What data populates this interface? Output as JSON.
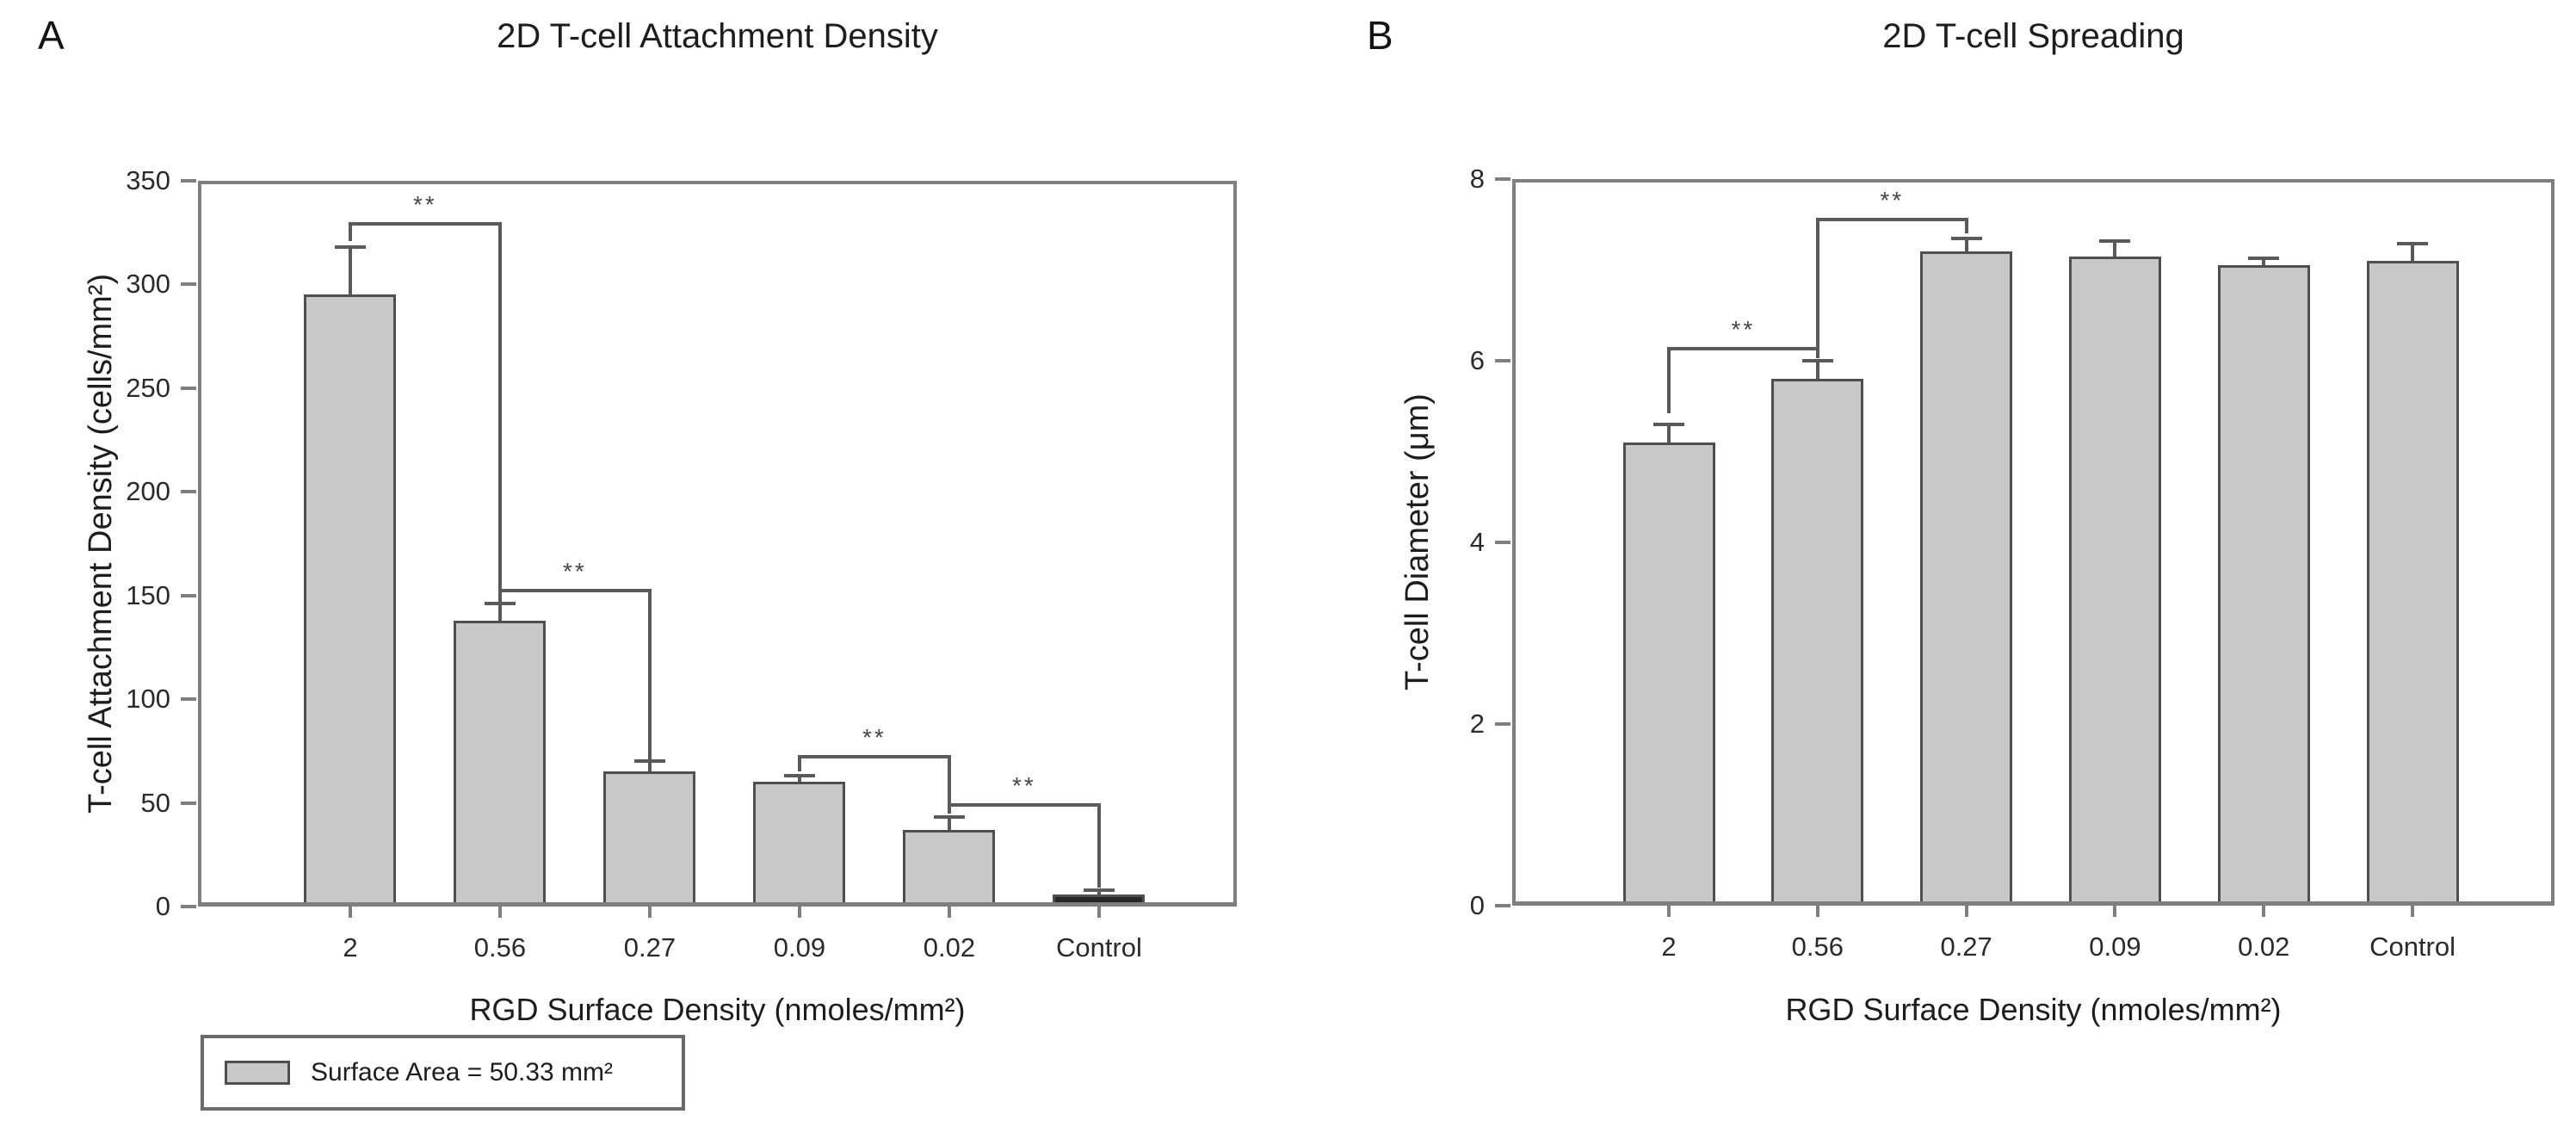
{
  "figure_background": "#ffffff",
  "chart_data": [
    {
      "type": "bar",
      "panel_label": "A",
      "title": "2D T-cell Attachment Density",
      "xlabel": "RGD Surface Density (nmoles/mm²)",
      "ylabel": "T-cell Attachment Density (cells/mm²)",
      "categories": [
        "2",
        "0.56",
        "0.27",
        "0.09",
        "0.02",
        "Control"
      ],
      "values": [
        295,
        138,
        65,
        60,
        37,
        6
      ],
      "errors_plus": [
        23,
        8,
        5,
        3,
        6,
        2
      ],
      "ylim": [
        0,
        350
      ],
      "yticks": [
        0,
        50,
        100,
        150,
        200,
        250,
        300,
        350
      ],
      "grid": false,
      "legend_position": "bottom-left",
      "bar_fill": "#c8c8c8",
      "bar_border": "#4f4f4f",
      "fill_overrides": {
        "5": "#262626"
      },
      "significance_brackets": [
        {
          "a": 0,
          "b": 1,
          "y": 330,
          "ya": 321,
          "yb": 150,
          "label": "**"
        },
        {
          "a": 1,
          "b": 2,
          "y": 153,
          "ya": 147,
          "yb": 70,
          "label": "**"
        },
        {
          "a": 3,
          "b": 4,
          "y": 73,
          "ya": 65,
          "yb": 45,
          "label": "**"
        },
        {
          "a": 4,
          "b": 5,
          "y": 50,
          "ya": 46,
          "yb": 9,
          "label": "**"
        }
      ],
      "legend_label": "Surface Area = 50.33 mm²"
    },
    {
      "type": "bar",
      "panel_label": "B",
      "title": "2D T-cell Spreading",
      "xlabel": "RGD Surface Density (nmoles/mm²)",
      "ylabel": "T-cell Diameter (μm)",
      "categories": [
        "2",
        "0.56",
        "0.27",
        "0.09",
        "0.02",
        "Control"
      ],
      "values": [
        5.1,
        5.8,
        7.2,
        7.15,
        7.05,
        7.1
      ],
      "errors_plus": [
        0.2,
        0.2,
        0.15,
        0.17,
        0.08,
        0.19
      ],
      "ylim": [
        0,
        8
      ],
      "yticks": [
        0,
        2,
        4,
        6,
        8
      ],
      "grid": false,
      "bar_fill": "#c8c8c8",
      "bar_border": "#4f4f4f",
      "fill_overrides": {},
      "significance_brackets": [
        {
          "a": 0,
          "b": 1,
          "y": 6.15,
          "ya": 5.42,
          "yb": 6.03,
          "label": "**"
        },
        {
          "a": 1,
          "b": 2,
          "y": 7.57,
          "ya": 6.06,
          "yb": 7.4,
          "label": "**"
        }
      ]
    }
  ]
}
